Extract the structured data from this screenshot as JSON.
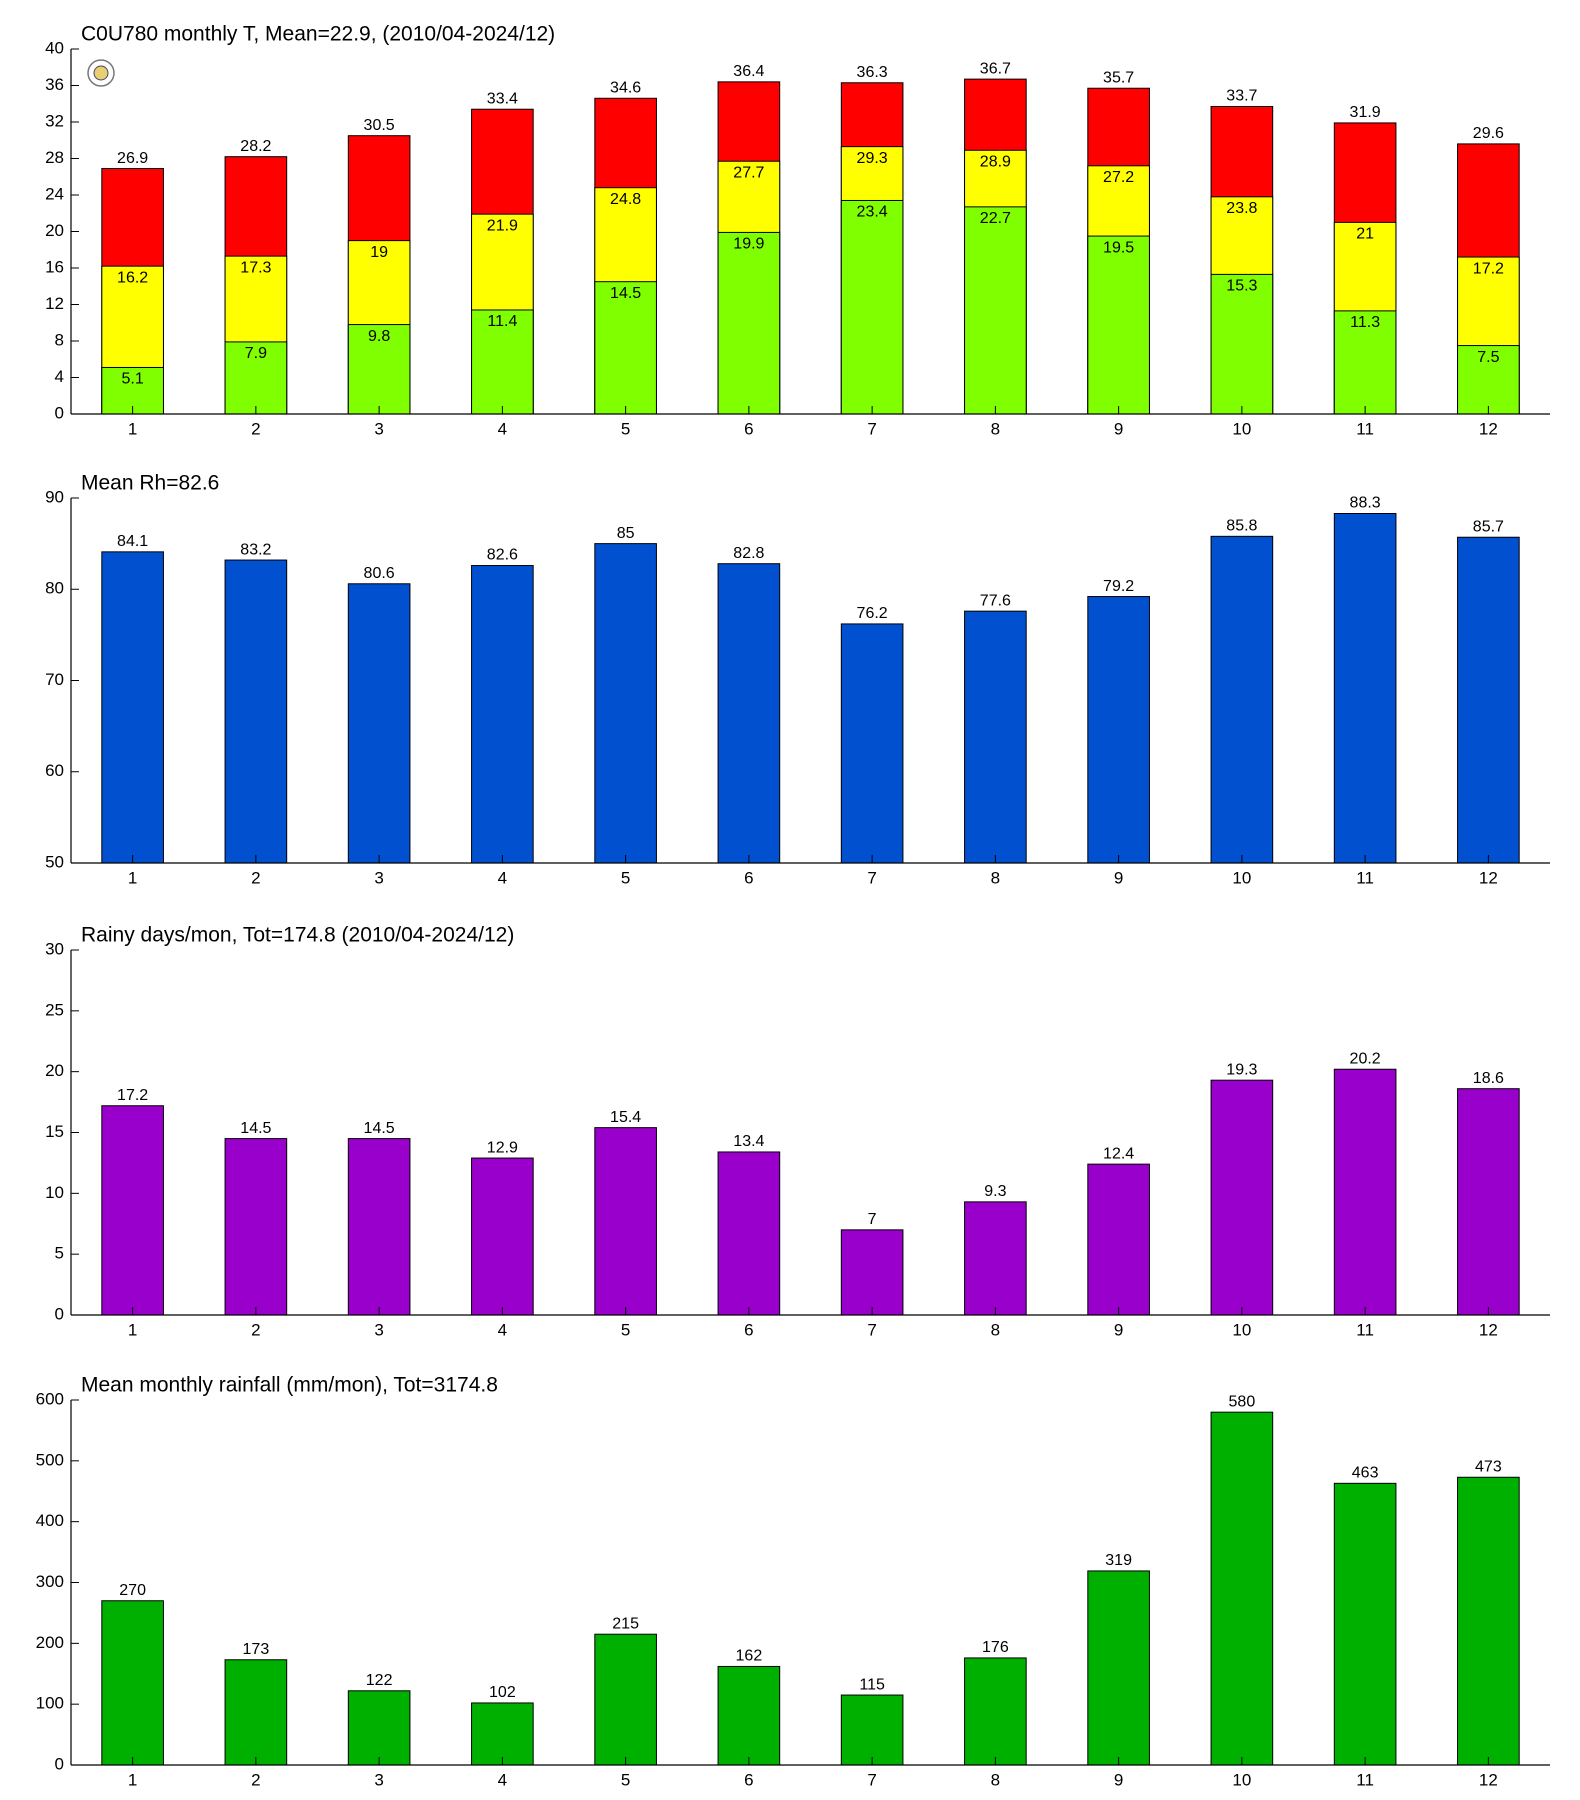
{
  "chart_data": [
    {
      "type": "bar",
      "title": "C0U780 monthly T, Mean=22.9, (2010/04-2024/12)",
      "categories": [
        "1",
        "2",
        "3",
        "4",
        "5",
        "6",
        "7",
        "8",
        "9",
        "10",
        "11",
        "12"
      ],
      "series": [
        {
          "color": "#ff0000",
          "values": [
            26.9,
            28.2,
            30.5,
            33.4,
            34.6,
            36.4,
            36.3,
            36.7,
            35.7,
            33.7,
            31.9,
            29.6
          ]
        },
        {
          "color": "#ffff00",
          "values": [
            16.2,
            17.3,
            19,
            21.9,
            24.8,
            27.7,
            29.3,
            28.9,
            27.2,
            23.8,
            21,
            17.2
          ]
        },
        {
          "color": "#80ff00",
          "values": [
            5.1,
            7.9,
            9.8,
            11.4,
            14.5,
            19.9,
            23.4,
            22.7,
            19.5,
            15.3,
            11.3,
            7.5
          ]
        }
      ],
      "ylim": [
        0,
        40
      ],
      "yticks": [
        0,
        4,
        8,
        12,
        16,
        20,
        24,
        28,
        32,
        36,
        40
      ]
    },
    {
      "type": "bar",
      "title": "Mean Rh=82.6",
      "categories": [
        "1",
        "2",
        "3",
        "4",
        "5",
        "6",
        "7",
        "8",
        "9",
        "10",
        "11",
        "12"
      ],
      "series": [
        {
          "color": "#0050d0",
          "values": [
            84.1,
            83.2,
            80.6,
            82.6,
            85,
            82.8,
            76.2,
            77.6,
            79.2,
            85.8,
            88.3,
            85.7
          ]
        }
      ],
      "ylim": [
        50,
        90
      ],
      "yticks": [
        50,
        60,
        70,
        80,
        90
      ]
    },
    {
      "type": "bar",
      "title": "Rainy days/mon, Tot=174.8 (2010/04-2024/12)",
      "categories": [
        "1",
        "2",
        "3",
        "4",
        "5",
        "6",
        "7",
        "8",
        "9",
        "10",
        "11",
        "12"
      ],
      "series": [
        {
          "color": "#9900cc",
          "values": [
            17.2,
            14.5,
            14.5,
            12.9,
            15.4,
            13.4,
            7,
            9.3,
            12.4,
            19.3,
            20.2,
            18.6
          ]
        }
      ],
      "ylim": [
        0,
        30
      ],
      "yticks": [
        0,
        5,
        10,
        15,
        20,
        25,
        30
      ]
    },
    {
      "type": "bar",
      "title": "Mean monthly rainfall (mm/mon), Tot=3174.8",
      "categories": [
        "1",
        "2",
        "3",
        "4",
        "5",
        "6",
        "7",
        "8",
        "9",
        "10",
        "11",
        "12"
      ],
      "series": [
        {
          "color": "#00b000",
          "values": [
            270,
            173,
            122,
            102,
            215,
            162,
            115,
            176,
            319,
            580,
            463,
            473
          ]
        }
      ],
      "ylim": [
        0,
        600
      ],
      "yticks": [
        0,
        100,
        200,
        300,
        400,
        500,
        600
      ]
    }
  ]
}
